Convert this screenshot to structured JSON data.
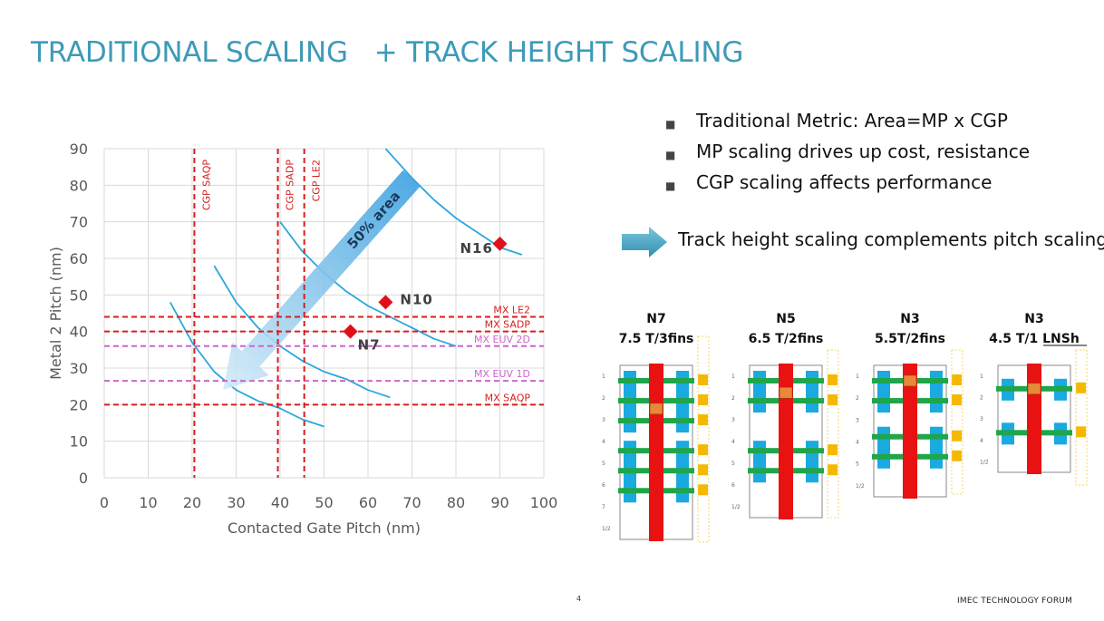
{
  "title": "TRADITIONAL SCALING   + TRACK HEIGHT SCALING",
  "bullets": [
    "Traditional Metric: Area=MP x CGP",
    "MP scaling drives up cost, resistance",
    "CGP scaling affects performance"
  ],
  "arrow_note": "Track height scaling complements pitch scaling",
  "footer": {
    "page": "4",
    "forum": "IMEC TECHNOLOGY FORUM"
  },
  "colors": {
    "title": "#3d9ab8",
    "curve": "#2aa8dc",
    "node_marker": "#e0101a",
    "red_rule": "#d81e1e",
    "euv_rule": "#cc66cc",
    "arrow": "#5aaee0"
  },
  "chart_data": {
    "type": "scatter",
    "xlabel": "Contacted Gate Pitch (nm)",
    "ylabel": "Metal  2 Pitch (nm)",
    "xlim": [
      0,
      100
    ],
    "ylim": [
      0,
      90
    ],
    "xticks": [
      "0",
      "10",
      "20",
      "30",
      "40",
      "50",
      "60",
      "70",
      "80",
      "90",
      "100"
    ],
    "yticks": [
      "0",
      "10",
      "20",
      "30",
      "40",
      "50",
      "60",
      "70",
      "80",
      "90"
    ],
    "grid": true,
    "nodes": [
      {
        "label": "N16",
        "x": 90,
        "y": 64
      },
      {
        "label": "N10",
        "x": 64,
        "y": 48
      },
      {
        "label": "N7",
        "x": 56,
        "y": 40
      }
    ],
    "iso_area_curves": [
      {
        "x": [
          64,
          70,
          75,
          80,
          85,
          90,
          95
        ],
        "y": [
          90,
          82,
          76,
          71,
          67,
          63,
          61
        ]
      },
      {
        "x": [
          40,
          45,
          50,
          55,
          60,
          65,
          70,
          75,
          80
        ],
        "y": [
          70,
          62,
          56,
          51,
          47,
          44,
          41,
          38,
          36
        ]
      },
      {
        "x": [
          25,
          30,
          35,
          40,
          45,
          50,
          55,
          60,
          65
        ],
        "y": [
          58,
          48,
          41,
          36,
          32,
          29,
          27,
          24,
          22
        ]
      },
      {
        "x": [
          15,
          20,
          25,
          30,
          35,
          40,
          45,
          50
        ],
        "y": [
          48,
          37,
          29,
          24,
          21,
          19,
          16,
          14
        ]
      }
    ],
    "vertical_rules": [
      {
        "label": "CGP SAQP",
        "x": 20.5
      },
      {
        "label": "CGP SADP",
        "x": 39.5
      },
      {
        "label": "CGP LE2",
        "x": 45.5
      }
    ],
    "horizontal_rules": [
      {
        "label": "MX LE2",
        "y": 44,
        "kind": "red"
      },
      {
        "label": "MX SADP",
        "y": 40,
        "kind": "red"
      },
      {
        "label": "MX EUV 2D",
        "y": 36,
        "kind": "euv"
      },
      {
        "label": "MX EUV 1D",
        "y": 26.5,
        "kind": "euv"
      },
      {
        "label": "MX SAQP",
        "y": 20,
        "kind": "red"
      }
    ],
    "arrow_label": "50% area"
  },
  "cells": [
    {
      "node": "N7",
      "spec": "7.5 T/3fins",
      "rows": [
        "1",
        "2",
        "3",
        "4",
        "5",
        "6",
        "7",
        "1/2"
      ]
    },
    {
      "node": "N5",
      "spec": "6.5 T/2fins",
      "rows": [
        "1",
        "2",
        "3",
        "4",
        "5",
        "6",
        "1/2"
      ]
    },
    {
      "node": "N3",
      "spec": "5.5T/2fins",
      "rows": [
        "1",
        "2",
        "3",
        "4",
        "5",
        "1/2"
      ]
    },
    {
      "node": "N3",
      "spec": "4.5 T/1 LNSh",
      "rows": [
        "1",
        "2",
        "3",
        "4",
        "1/2"
      ]
    }
  ]
}
